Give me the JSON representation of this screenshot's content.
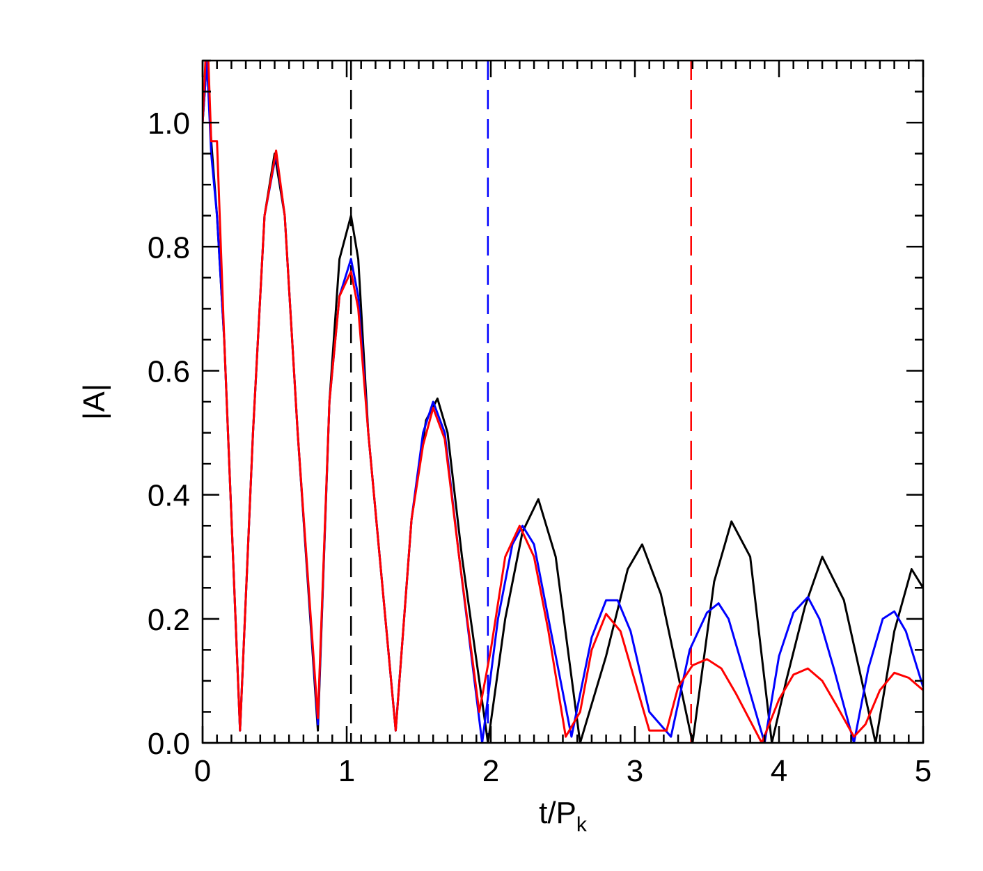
{
  "chart_data": {
    "type": "line",
    "title": "",
    "xlabel_main": "t/P",
    "xlabel_sub": "k",
    "ylabel": "|A|",
    "xlim": [
      0,
      5
    ],
    "ylim": [
      0,
      1.1
    ],
    "x_ticks": [
      0,
      1,
      2,
      3,
      4,
      5
    ],
    "x_tick_labels": [
      "0",
      "1",
      "2",
      "3",
      "4",
      "5"
    ],
    "y_ticks": [
      0.0,
      0.2,
      0.4,
      0.6,
      0.8,
      1.0
    ],
    "y_tick_labels": [
      "0.0",
      "0.2",
      "0.4",
      "0.6",
      "0.8",
      "1.0"
    ],
    "grid": false,
    "legend": "none",
    "series": [
      {
        "color": "#000000",
        "x": [
          0,
          0.03,
          0.06,
          0.1,
          0.15,
          0.26,
          0.35,
          0.43,
          0.5,
          0.57,
          0.66,
          0.8,
          0.88,
          0.95,
          1.03,
          1.08,
          1.15,
          1.34,
          1.45,
          1.55,
          1.63,
          1.7,
          1.8,
          1.98,
          2.1,
          2.22,
          2.33,
          2.45,
          2.62,
          2.8,
          2.95,
          3.05,
          3.18,
          3.4,
          3.55,
          3.67,
          3.8,
          3.95,
          4.05,
          4.18,
          4.3,
          4.45,
          4.67,
          4.8,
          4.92,
          5.0
        ],
        "y": [
          1.0,
          1.1,
          0.97,
          0.85,
          0.65,
          0.02,
          0.5,
          0.85,
          0.95,
          0.85,
          0.5,
          0.02,
          0.55,
          0.78,
          0.85,
          0.78,
          0.5,
          0.02,
          0.36,
          0.52,
          0.555,
          0.5,
          0.3,
          0.0,
          0.2,
          0.34,
          0.393,
          0.3,
          0.0,
          0.14,
          0.28,
          0.32,
          0.24,
          0.0,
          0.26,
          0.357,
          0.3,
          0.0,
          0.1,
          0.22,
          0.3,
          0.23,
          0.0,
          0.18,
          0.28,
          0.25
        ]
      },
      {
        "color": "#0000ff",
        "x": [
          0,
          0.03,
          0.06,
          0.1,
          0.15,
          0.26,
          0.35,
          0.43,
          0.51,
          0.57,
          0.66,
          0.8,
          0.88,
          0.95,
          1.03,
          1.08,
          1.15,
          1.34,
          1.45,
          1.53,
          1.6,
          1.68,
          1.78,
          1.94,
          2.05,
          2.15,
          2.22,
          2.3,
          2.4,
          2.56,
          2.7,
          2.8,
          2.88,
          2.97,
          3.1,
          3.25,
          3.38,
          3.5,
          3.58,
          3.65,
          3.75,
          3.9,
          4.0,
          4.1,
          4.2,
          4.28,
          4.38,
          4.52,
          4.62,
          4.72,
          4.8,
          4.88,
          5.0
        ],
        "y": [
          1.0,
          1.1,
          0.95,
          0.85,
          0.65,
          0.02,
          0.5,
          0.85,
          0.95,
          0.85,
          0.5,
          0.03,
          0.55,
          0.72,
          0.78,
          0.72,
          0.5,
          0.02,
          0.36,
          0.5,
          0.55,
          0.5,
          0.3,
          0.0,
          0.2,
          0.32,
          0.35,
          0.32,
          0.2,
          0.01,
          0.17,
          0.23,
          0.23,
          0.18,
          0.05,
          0.01,
          0.15,
          0.21,
          0.225,
          0.2,
          0.12,
          0.0,
          0.14,
          0.21,
          0.235,
          0.2,
          0.12,
          0.0,
          0.12,
          0.2,
          0.212,
          0.18,
          0.09
        ]
      },
      {
        "color": "#ff0000",
        "x": [
          0,
          0.02,
          0.04,
          0.06,
          0.1,
          0.15,
          0.26,
          0.35,
          0.43,
          0.51,
          0.57,
          0.66,
          0.8,
          0.88,
          0.95,
          1.03,
          1.08,
          1.15,
          1.34,
          1.45,
          1.53,
          1.6,
          1.68,
          1.78,
          1.92,
          2.0,
          2.1,
          2.2,
          2.3,
          2.4,
          2.52,
          2.62,
          2.7,
          2.8,
          2.9,
          3.0,
          3.1,
          3.22,
          3.3,
          3.4,
          3.5,
          3.6,
          3.7,
          3.88,
          4.0,
          4.1,
          4.2,
          4.3,
          4.4,
          4.52,
          4.6,
          4.7,
          4.8,
          4.9,
          5.0
        ],
        "y": [
          1.0,
          1.1,
          1.1,
          0.97,
          0.97,
          0.65,
          0.02,
          0.5,
          0.85,
          0.955,
          0.85,
          0.5,
          0.04,
          0.55,
          0.72,
          0.76,
          0.7,
          0.5,
          0.02,
          0.36,
          0.48,
          0.54,
          0.49,
          0.3,
          0.05,
          0.15,
          0.3,
          0.35,
          0.3,
          0.18,
          0.01,
          0.05,
          0.15,
          0.208,
          0.18,
          0.1,
          0.02,
          0.02,
          0.09,
          0.125,
          0.135,
          0.12,
          0.08,
          0.0,
          0.07,
          0.11,
          0.12,
          0.1,
          0.06,
          0.01,
          0.03,
          0.085,
          0.113,
          0.105,
          0.085
        ]
      }
    ],
    "vlines": [
      {
        "x": 1.03,
        "color": "#000000"
      },
      {
        "x": 1.98,
        "color": "#0000ff"
      },
      {
        "x": 3.39,
        "color": "#ff0000"
      }
    ]
  }
}
